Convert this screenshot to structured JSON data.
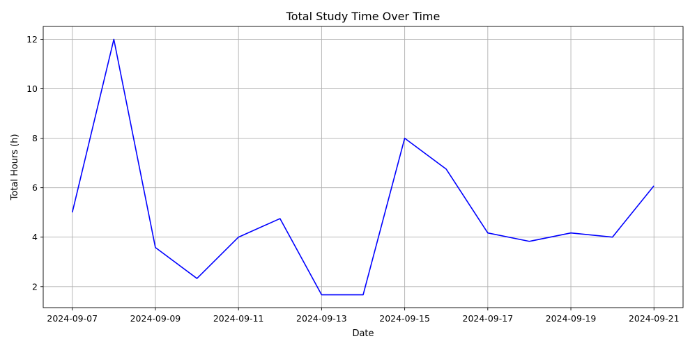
{
  "chart_data": {
    "type": "line",
    "title": "Total Study Time Over Time",
    "xlabel": "Date",
    "ylabel": "Total Hours (h)",
    "x": [
      "2024-09-07",
      "2024-09-08",
      "2024-09-09",
      "2024-09-10",
      "2024-09-11",
      "2024-09-12",
      "2024-09-13",
      "2024-09-14",
      "2024-09-15",
      "2024-09-16",
      "2024-09-17",
      "2024-09-18",
      "2024-09-19",
      "2024-09-20",
      "2024-09-21"
    ],
    "series": [
      {
        "values": [
          5.0,
          12.0,
          3.58,
          2.33,
          4.0,
          4.75,
          1.67,
          1.67,
          8.0,
          6.75,
          4.17,
          3.83,
          4.17,
          4.0,
          6.08
        ]
      }
    ],
    "xticks": [
      "2024-09-07",
      "2024-09-09",
      "2024-09-11",
      "2024-09-13",
      "2024-09-15",
      "2024-09-17",
      "2024-09-19",
      "2024-09-21"
    ],
    "yticks": [
      2,
      4,
      6,
      8,
      10,
      12
    ],
    "xlim": [
      "2024-09-06T07:12",
      "2024-09-21T16:48"
    ],
    "ylim": [
      1.15,
      12.52
    ],
    "grid": true,
    "colors": {
      "series": "#0000ff",
      "grid": "#b0b0b0"
    }
  }
}
